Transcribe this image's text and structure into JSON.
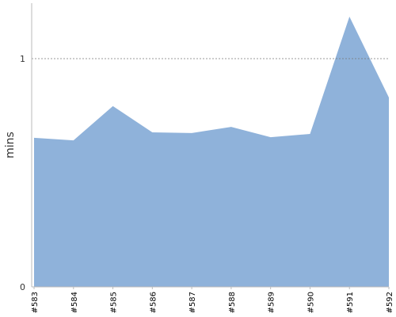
{
  "chart_data": {
    "type": "area",
    "y_label": "mins",
    "categories": [
      "#583",
      "#584",
      "#585",
      "#586",
      "#587",
      "#588",
      "#589",
      "#590",
      "#591",
      "#592"
    ],
    "values": [
      0.653,
      0.642,
      0.792,
      0.677,
      0.674,
      0.701,
      0.656,
      0.67,
      1.184,
      0.83
    ],
    "color": "#8fb2da",
    "ylim": [
      0,
      1.243
    ],
    "yticks": [
      0,
      1
    ],
    "grid": true
  }
}
